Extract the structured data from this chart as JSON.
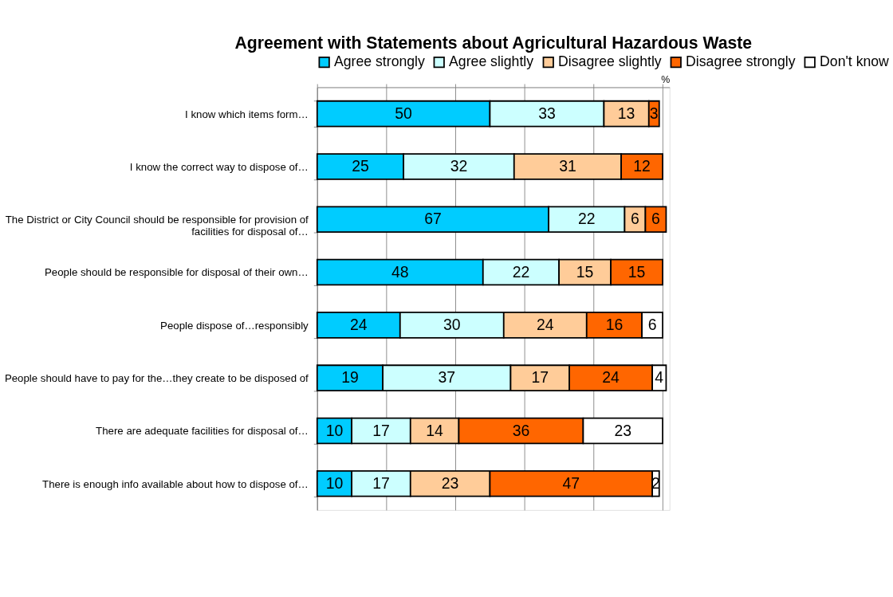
{
  "chart_data": {
    "type": "bar",
    "orientation": "horizontal",
    "stacked": true,
    "title": "Agreement with Statements about Agricultural Hazardous Waste",
    "xlabel": "%",
    "categories": [
      "I know which items form…",
      "I know the correct way to dispose of…",
      "The District or City Council should be responsible for provision of facilities for disposal of…",
      "People should be responsible for disposal of their own…",
      "People dispose of…responsibly",
      "People should have to pay for the…they create to be disposed of",
      "There are adequate facilities for disposal of…",
      "There is enough info available about how to dispose of…"
    ],
    "series": [
      {
        "name": "Agree strongly",
        "color": "#00ccff",
        "values": [
          50,
          25,
          67,
          48,
          24,
          19,
          10,
          10
        ]
      },
      {
        "name": "Agree slightly",
        "color": "#ccffff",
        "values": [
          33,
          32,
          22,
          22,
          30,
          37,
          17,
          17
        ]
      },
      {
        "name": "Disagree slightly",
        "color": "#ffcc99",
        "values": [
          13,
          31,
          6,
          15,
          24,
          17,
          14,
          23
        ]
      },
      {
        "name": "Disagree strongly",
        "color": "#ff6600",
        "values": [
          3,
          12,
          6,
          15,
          16,
          24,
          36,
          47
        ]
      },
      {
        "name": "Don't know",
        "color": "#ffffff",
        "values": [
          null,
          null,
          null,
          null,
          6,
          4,
          23,
          2
        ]
      }
    ],
    "xlim": [
      0,
      102
    ],
    "xticks": [
      {
        "value": 0,
        "label": null
      },
      {
        "value": 20,
        "label": null
      },
      {
        "value": 40,
        "label": null
      },
      {
        "value": 60,
        "label": null
      },
      {
        "value": 80,
        "label": null
      },
      {
        "value": 100,
        "label": null
      }
    ],
    "tick_labels": "y",
    "grid": "x",
    "legend": "top",
    "data_labels": true
  }
}
